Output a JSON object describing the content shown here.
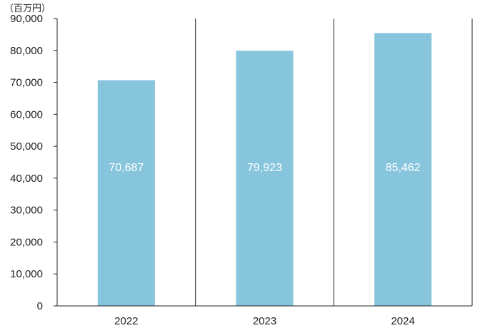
{
  "chart_data": {
    "type": "bar",
    "unit_label": "（百万円）",
    "categories": [
      "2022",
      "2023",
      "2024"
    ],
    "values": [
      70687,
      79923,
      85462
    ],
    "value_labels": [
      "70,687",
      "79,923",
      "85,462"
    ],
    "ylim": [
      0,
      90000
    ],
    "yticks": [
      0,
      10000,
      20000,
      30000,
      40000,
      50000,
      60000,
      70000,
      80000,
      90000
    ],
    "ytick_labels": [
      "0",
      "10,000",
      "20,000",
      "30,000",
      "40,000",
      "50,000",
      "60,000",
      "70,000",
      "80,000",
      "90,000"
    ],
    "bar_color": "#87c5dd",
    "value_label_color": "#ffffff",
    "grid": false
  }
}
